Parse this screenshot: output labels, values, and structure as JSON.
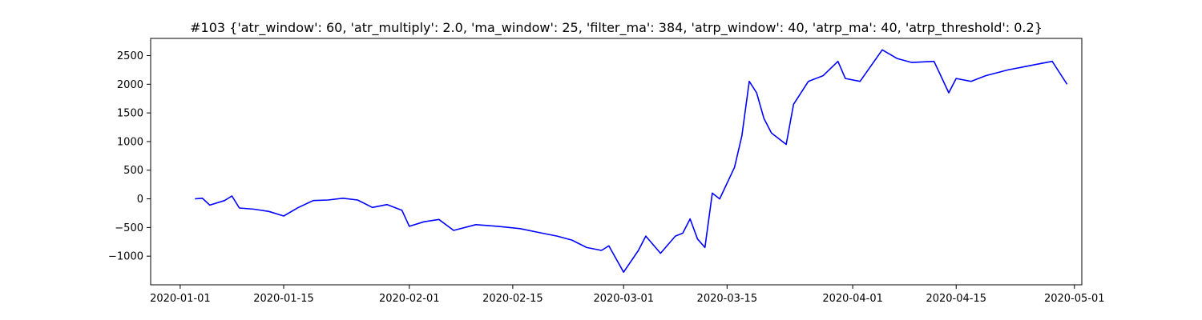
{
  "chart_data": {
    "type": "line",
    "title": "#103 {'atr_window': 60, 'atr_multiply': 2.0, 'ma_window': 25, 'filter_ma': 384, 'atrp_window': 40, 'atrp_ma': 40, 'atrp_threshold': 0.2}",
    "xlabel": "",
    "ylabel": "",
    "grid": false,
    "legend": "none",
    "line_color": "#0000ff",
    "xlim": [
      "2019-12-28",
      "2020-05-02"
    ],
    "ylim": [
      -1500,
      2800
    ],
    "x_ticks": [
      "2020-01-01",
      "2020-01-15",
      "2020-02-01",
      "2020-02-15",
      "2020-03-01",
      "2020-03-15",
      "2020-04-01",
      "2020-04-15",
      "2020-05-01"
    ],
    "y_ticks": [
      -1000,
      -500,
      0,
      500,
      1000,
      1500,
      2000,
      2500
    ],
    "series": [
      {
        "x": [
          "2020-01-03",
          "2020-01-04",
          "2020-01-05",
          "2020-01-07",
          "2020-01-08",
          "2020-01-09",
          "2020-01-11",
          "2020-01-13",
          "2020-01-15",
          "2020-01-17",
          "2020-01-19",
          "2020-01-21",
          "2020-01-23",
          "2020-01-25",
          "2020-01-27",
          "2020-01-29",
          "2020-01-31",
          "2020-02-01",
          "2020-02-03",
          "2020-02-05",
          "2020-02-07",
          "2020-02-10",
          "2020-02-13",
          "2020-02-16",
          "2020-02-19",
          "2020-02-21",
          "2020-02-23",
          "2020-02-25",
          "2020-02-27",
          "2020-02-28",
          "2020-03-01",
          "2020-03-03",
          "2020-03-04",
          "2020-03-06",
          "2020-03-08",
          "2020-03-09",
          "2020-03-10",
          "2020-03-11",
          "2020-03-12",
          "2020-03-13",
          "2020-03-14",
          "2020-03-16",
          "2020-03-17",
          "2020-03-18",
          "2020-03-19",
          "2020-03-20",
          "2020-03-21",
          "2020-03-23",
          "2020-03-24",
          "2020-03-26",
          "2020-03-28",
          "2020-03-30",
          "2020-03-31",
          "2020-04-02",
          "2020-04-05",
          "2020-04-07",
          "2020-04-09",
          "2020-04-12",
          "2020-04-14",
          "2020-04-15",
          "2020-04-17",
          "2020-04-19",
          "2020-04-22",
          "2020-04-24",
          "2020-04-26",
          "2020-04-28",
          "2020-04-29",
          "2020-04-30"
        ],
        "values": [
          0,
          10,
          -110,
          -30,
          50,
          -160,
          -180,
          -220,
          -300,
          -150,
          -30,
          -20,
          10,
          -20,
          -150,
          -100,
          -200,
          -480,
          -400,
          -360,
          -550,
          -450,
          -480,
          -520,
          -600,
          -650,
          -720,
          -850,
          -900,
          -820,
          -1280,
          -900,
          -650,
          -950,
          -650,
          -600,
          -350,
          -700,
          -850,
          100,
          0,
          550,
          1100,
          2050,
          1850,
          1400,
          1150,
          950,
          1650,
          2050,
          2150,
          2400,
          2100,
          2050,
          2600,
          2450,
          2380,
          2400,
          1850,
          2100,
          2050,
          2150,
          2250,
          2300,
          2350,
          2400,
          2200,
          2000
        ]
      }
    ]
  }
}
